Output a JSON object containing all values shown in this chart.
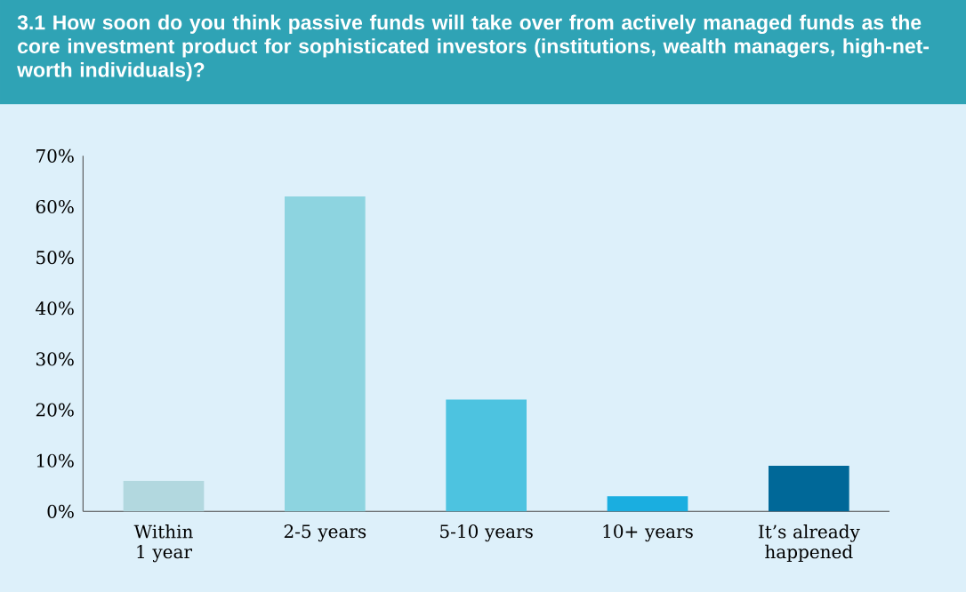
{
  "chart_data": {
    "type": "bar",
    "title": "3.1 How soon do you think passive funds will take over from actively managed funds as the core investment product for sophisticated investors (institutions, wealth managers, high-net-worth individuals)?",
    "categories": [
      "Within 1 year",
      "2-5 years",
      "5-10 years",
      "10+ years",
      "It’s already happened"
    ],
    "values": [
      6,
      62,
      22,
      3,
      9
    ],
    "colors": [
      "#b2d8df",
      "#8dd4e0",
      "#4dc3e0",
      "#1aaee0",
      "#006898"
    ],
    "ylim": [
      0,
      70
    ],
    "yticks": [
      {
        "value": 0,
        "label": "0%"
      },
      {
        "value": 10,
        "label": "10%"
      },
      {
        "value": 20,
        "label": "20%"
      },
      {
        "value": 30,
        "label": "30%"
      },
      {
        "value": 40,
        "label": "40%"
      },
      {
        "value": 50,
        "label": "50%"
      },
      {
        "value": 60,
        "label": "60%"
      },
      {
        "value": 70,
        "label": "70%"
      }
    ],
    "grid": false
  }
}
